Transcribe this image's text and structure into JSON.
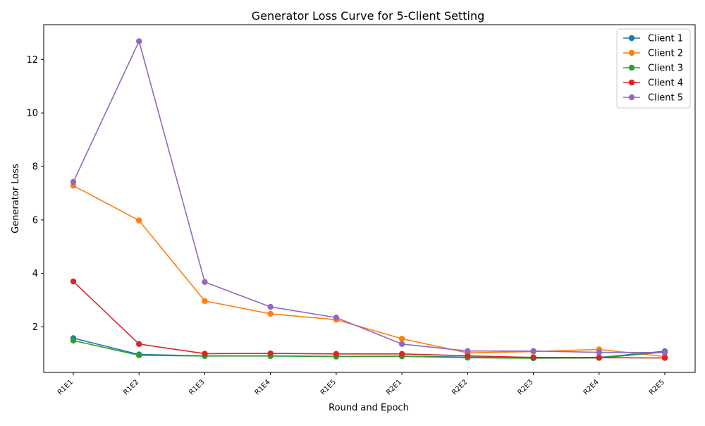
{
  "chart_data": {
    "type": "line",
    "title": "Generator Loss Curve for 5-Client Setting",
    "xlabel": "Round and Epoch",
    "ylabel": "Generator Loss",
    "categories": [
      "R1E1",
      "R1E2",
      "R1E3",
      "R1E4",
      "R1E5",
      "R2E1",
      "R2E2",
      "R2E3",
      "R2E4",
      "R2E5"
    ],
    "ylim": [
      0.3,
      13.3
    ],
    "yticks": [
      2,
      4,
      6,
      8,
      10,
      12
    ],
    "grid": false,
    "legend_position": "top-right",
    "series": [
      {
        "name": "Client 1",
        "color": "#1f77b4",
        "values": [
          1.58,
          0.97,
          0.92,
          0.92,
          0.9,
          0.91,
          0.87,
          0.86,
          0.86,
          1.09
        ]
      },
      {
        "name": "Client 2",
        "color": "#ff7f0e",
        "values": [
          7.28,
          5.98,
          2.97,
          2.49,
          2.27,
          1.56,
          1.03,
          1.08,
          1.16,
          0.89
        ]
      },
      {
        "name": "Client 3",
        "color": "#2ca02c",
        "values": [
          1.49,
          0.94,
          0.91,
          0.91,
          0.89,
          0.9,
          0.85,
          0.83,
          0.84,
          1.06
        ]
      },
      {
        "name": "Client 4",
        "color": "#d62728",
        "values": [
          3.7,
          1.36,
          1.0,
          1.01,
          0.99,
          0.99,
          0.92,
          0.86,
          0.85,
          0.84
        ]
      },
      {
        "name": "Client 5",
        "color": "#9467bd",
        "values": [
          7.42,
          12.68,
          3.68,
          2.75,
          2.35,
          1.36,
          1.1,
          1.1,
          1.05,
          1.04
        ]
      }
    ]
  }
}
